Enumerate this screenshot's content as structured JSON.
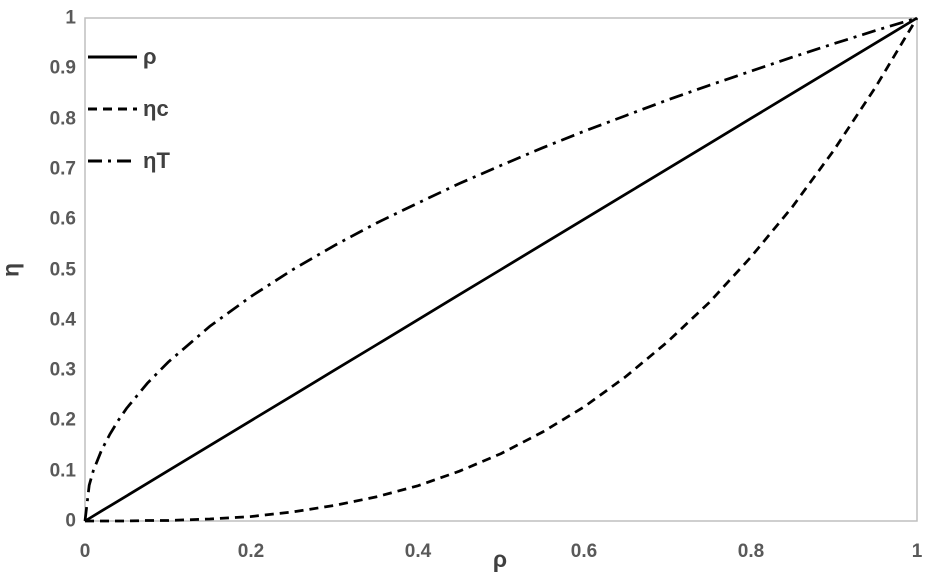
{
  "chart_data": {
    "type": "line",
    "title": "",
    "xlabel": "ρ",
    "ylabel": "η",
    "xlim": [
      0,
      1
    ],
    "ylim": [
      0,
      1
    ],
    "grid": false,
    "legend_position": "inside-top-left",
    "x_ticks": [
      0,
      0.2,
      0.4,
      0.6,
      0.8,
      1
    ],
    "x_tick_labels": [
      "0",
      "0.2",
      "0.4",
      "0.6",
      "0.8",
      "1"
    ],
    "y_ticks": [
      0,
      0.1,
      0.2,
      0.3,
      0.4,
      0.5,
      0.6,
      0.7,
      0.8,
      0.9,
      1
    ],
    "y_tick_labels": [
      "0",
      "0.1",
      "0.2",
      "0.3",
      "0.4",
      "0.5",
      "0.6",
      "0.7",
      "0.8",
      "0.9",
      "1"
    ],
    "x": [
      0,
      0.005,
      0.01,
      0.02,
      0.03,
      0.04,
      0.05,
      0.075,
      0.1,
      0.15,
      0.2,
      0.25,
      0.3,
      0.35,
      0.4,
      0.45,
      0.5,
      0.55,
      0.6,
      0.65,
      0.7,
      0.75,
      0.8,
      0.85,
      0.9,
      0.95,
      1
    ],
    "series": [
      {
        "name": "ρ",
        "line_style": "solid",
        "color": "#000000",
        "values": [
          0,
          0.005,
          0.01,
          0.02,
          0.03,
          0.04,
          0.05,
          0.075,
          0.1,
          0.15,
          0.2,
          0.25,
          0.3,
          0.35,
          0.4,
          0.45,
          0.5,
          0.55,
          0.6,
          0.65,
          0.7,
          0.75,
          0.8,
          0.85,
          0.9,
          0.95,
          1
        ]
      },
      {
        "name": "ηc",
        "line_style": "dashed",
        "color": "#000000",
        "values": [
          0,
          0,
          0,
          0,
          0,
          0,
          0,
          0.001,
          0.001,
          0.004,
          0.009,
          0.018,
          0.031,
          0.048,
          0.07,
          0.099,
          0.134,
          0.177,
          0.227,
          0.287,
          0.356,
          0.434,
          0.524,
          0.624,
          0.737,
          0.862,
          1
        ]
      },
      {
        "name": "ηT",
        "line_style": "dash-dot",
        "color": "#000000",
        "values": [
          0,
          0.071,
          0.1,
          0.141,
          0.173,
          0.2,
          0.224,
          0.274,
          0.316,
          0.387,
          0.447,
          0.5,
          0.548,
          0.592,
          0.632,
          0.671,
          0.707,
          0.742,
          0.775,
          0.806,
          0.837,
          0.866,
          0.894,
          0.922,
          0.949,
          0.975,
          1
        ]
      }
    ]
  },
  "styles": {
    "tick_color": "#595959",
    "axis_title_color": "#404040",
    "plot_border_color": "#bfbfbf",
    "series_color": "#000000",
    "background": "#ffffff"
  }
}
